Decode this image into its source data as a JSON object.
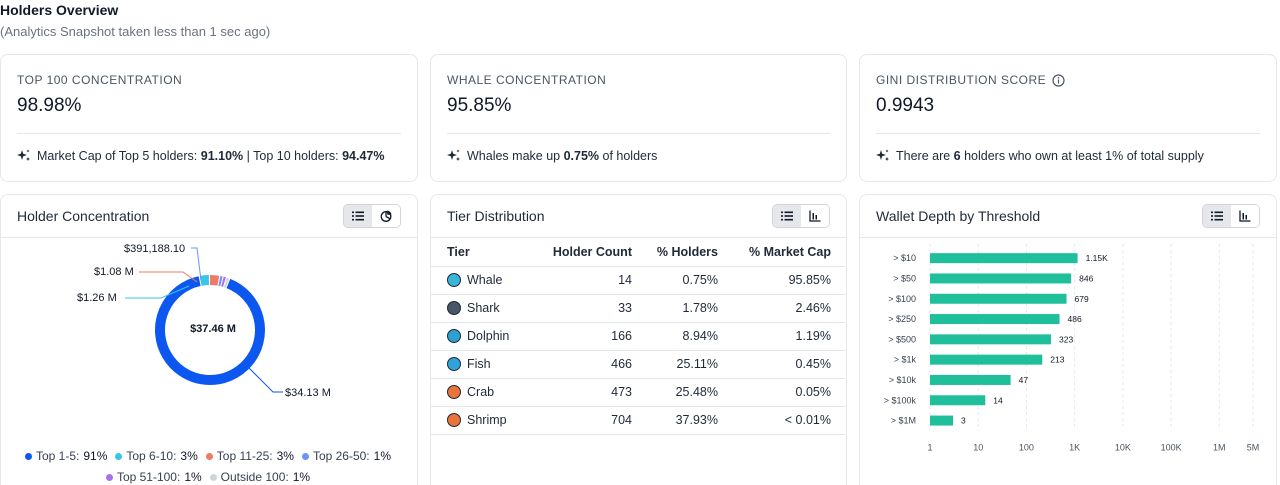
{
  "header": {
    "title": "Holders Overview",
    "subtitle": "(Analytics Snapshot taken less than 1 sec ago)"
  },
  "stats": [
    {
      "label": "TOP 100 CONCENTRATION",
      "value": "98.98%",
      "foot_parts": [
        "Market Cap of Top 5 holders: ",
        "91.10%",
        " | Top 10 holders: ",
        "94.47%"
      ]
    },
    {
      "label": "WHALE CONCENTRATION",
      "value": "95.85%",
      "foot_parts": [
        "Whales make up ",
        "0.75%",
        " of holders"
      ]
    },
    {
      "label": "GINI DISTRIBUTION SCORE",
      "value": "0.9943",
      "foot_parts": [
        "There are ",
        "6",
        " holders who own at least 1% of total supply"
      ]
    }
  ],
  "holder_concentration": {
    "title": "Holder Concentration",
    "center_label": "$37.46 M",
    "callouts": {
      "top1_5": "$34.13 M",
      "top6_10": "$1.26 M",
      "top11_25": "$1.08 M",
      "top26_50": "$391,188.10"
    },
    "legend": [
      {
        "label": "Top 1-5:",
        "pct": "91%",
        "color": "#0b57f0"
      },
      {
        "label": "Top 6-10:",
        "pct": "3%",
        "color": "#38c6e8"
      },
      {
        "label": "Top 11-25:",
        "pct": "3%",
        "color": "#f07a63"
      },
      {
        "label": "Top 26-50:",
        "pct": "1%",
        "color": "#6e93f7"
      },
      {
        "label": "Top 51-100:",
        "pct": "1%",
        "color": "#a970e8"
      },
      {
        "label": "Outside 100:",
        "pct": "1%",
        "color": "#d1d5db"
      }
    ]
  },
  "tier_distribution": {
    "title": "Tier Distribution",
    "headers": [
      "Tier",
      "Holder Count",
      "% Holders",
      "% Market Cap"
    ],
    "rows": [
      {
        "tier": "Whale",
        "count": "14",
        "holders": "0.75%",
        "mcap": "95.85%",
        "icon": "whale-icon"
      },
      {
        "tier": "Shark",
        "count": "33",
        "holders": "1.78%",
        "mcap": "2.46%",
        "icon": "shark-icon"
      },
      {
        "tier": "Dolphin",
        "count": "166",
        "holders": "8.94%",
        "mcap": "1.19%",
        "icon": "dolphin-icon"
      },
      {
        "tier": "Fish",
        "count": "466",
        "holders": "25.11%",
        "mcap": "0.45%",
        "icon": "fish-icon"
      },
      {
        "tier": "Crab",
        "count": "473",
        "holders": "25.48%",
        "mcap": "0.05%",
        "icon": "crab-icon"
      },
      {
        "tier": "Shrimp",
        "count": "704",
        "holders": "37.93%",
        "mcap": "< 0.01%",
        "icon": "shrimp-icon"
      }
    ],
    "icon_colors": [
      "#38b6d8",
      "#4a5568",
      "#2f9fd0",
      "#2fa3d9",
      "#e8743b",
      "#e8743b"
    ]
  },
  "chart_data": [
    {
      "type": "pie",
      "categories": [
        "Top 1-5",
        "Top 6-10",
        "Top 11-25",
        "Top 26-50",
        "Top 51-100",
        "Outside 100"
      ],
      "values": [
        91,
        3,
        3,
        1,
        1,
        1
      ],
      "colors": [
        "#0b57f0",
        "#38c6e8",
        "#f07a63",
        "#6e93f7",
        "#a970e8",
        "#d1d5db"
      ],
      "title": "Holder Concentration"
    },
    {
      "type": "bar",
      "orientation": "horizontal",
      "title": "Wallet Depth by Threshold",
      "categories": [
        "> $10",
        "> $50",
        "> $100",
        "> $250",
        "> $500",
        "> $1k",
        "> $10k",
        "> $100k",
        "> $1M"
      ],
      "values": [
        1150,
        846,
        679,
        486,
        323,
        213,
        47,
        14,
        3
      ],
      "value_labels": [
        "1.15K",
        "846",
        "679",
        "486",
        "323",
        "213",
        "47",
        "14",
        "3"
      ],
      "x_scale": "log",
      "xlim": [
        1,
        5000000
      ],
      "x_ticks": [
        1,
        10,
        100,
        1000,
        10000,
        100000,
        1000000,
        5000000
      ],
      "x_tick_labels": [
        "1",
        "10",
        "100",
        "1K",
        "10K",
        "100K",
        "1M",
        "5M"
      ],
      "color": "#20bf9b",
      "grid": true
    }
  ],
  "wallet_depth": {
    "title": "Wallet Depth by Threshold"
  }
}
